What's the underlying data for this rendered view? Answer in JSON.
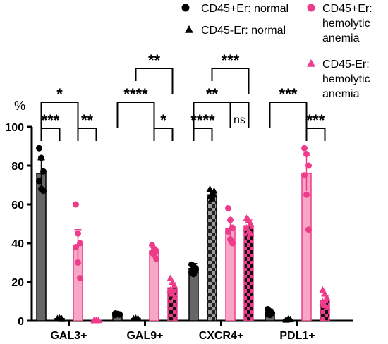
{
  "chart_data": {
    "type": "bar",
    "ylabel": "%",
    "ylim": [
      0,
      100
    ],
    "yticks": [
      "0",
      "20",
      "40",
      "60",
      "80",
      "100"
    ],
    "categories": [
      "GAL3+",
      "GAL9+",
      "CXCR4+",
      "PDL1+"
    ],
    "colors": {
      "normal": "#666666",
      "normal_dark": "#000000",
      "anemia": "#ee3c8a",
      "anemia_light": "#f7a6c6"
    },
    "series": [
      {
        "name": "CD45+Er: normal",
        "marker": "circle",
        "values": [
          76,
          3.5,
          27,
          4.5
        ],
        "errors": [
          7,
          0.6,
          2.5,
          1.5
        ],
        "points": [
          [
            89,
            84,
            77,
            72,
            68,
            67
          ],
          [
            3.8,
            3.5,
            3.3,
            3.0,
            3.6,
            3.2
          ],
          [
            29,
            28,
            27,
            25,
            24,
            26
          ],
          [
            6,
            5,
            4,
            3.5,
            3,
            4
          ]
        ]
      },
      {
        "name": "CD45-Er: normal",
        "marker": "triangle",
        "values": [
          1.2,
          1.2,
          65,
          0.8
        ],
        "errors": [
          0.4,
          0.3,
          2,
          0.3
        ],
        "points": [
          [
            1.0,
            1.5,
            0.8,
            1.3,
            1.0,
            1.2
          ],
          [
            1.0,
            1.4,
            0.9,
            1.2,
            1.1,
            1.3
          ],
          [
            68,
            66,
            65,
            64,
            63,
            67
          ],
          [
            0.6,
            1.0,
            0.8,
            0.5,
            0.9,
            0.7
          ]
        ]
      },
      {
        "name": "CD45+Er: hemolytic anemia",
        "marker": "circle",
        "values": [
          39,
          36,
          47.5,
          76
        ],
        "errors": [
          8,
          2,
          4,
          9
        ],
        "points": [
          [
            60,
            45,
            40,
            38,
            30,
            22
          ],
          [
            39,
            37,
            36,
            35,
            34,
            32
          ],
          [
            58,
            52,
            48,
            46,
            42,
            40
          ],
          [
            89,
            86,
            80,
            75,
            65,
            47
          ]
        ]
      },
      {
        "name": "CD45-Er: hemolytic anemia",
        "marker": "triangle",
        "values": [
          0.3,
          17,
          49,
          10.5
        ],
        "errors": [
          0.2,
          2.5,
          3,
          2.5
        ],
        "points": [
          [
            0.2,
            0.4,
            0.3,
            0.5,
            0.2,
            0.3
          ],
          [
            22,
            20,
            18,
            16,
            14,
            12
          ],
          [
            53,
            52,
            50,
            48,
            46,
            45
          ],
          [
            16,
            14,
            12,
            10,
            8,
            7
          ]
        ]
      }
    ],
    "significance": [
      {
        "cat": 0,
        "from": 0,
        "to": 2,
        "level": 1,
        "label": "*"
      },
      {
        "cat": 0,
        "from": 0,
        "to": 1,
        "level": 0,
        "label": "***"
      },
      {
        "cat": 0,
        "from": 2,
        "to": 3,
        "level": 0,
        "label": "**"
      },
      {
        "cat": 1,
        "from": 1,
        "to": 3,
        "level": 2,
        "label": "**"
      },
      {
        "cat": 1,
        "from": 0,
        "to": 2,
        "level": 1,
        "label": "****"
      },
      {
        "cat": 1,
        "from": 2,
        "to": 3,
        "level": 0,
        "label": "*"
      },
      {
        "cat": 2,
        "from": 1,
        "to": 3,
        "level": 2,
        "label": "***"
      },
      {
        "cat": 2,
        "from": 0,
        "to": 2,
        "level": 1,
        "label": "**"
      },
      {
        "cat": 2,
        "from": 0,
        "to": 1,
        "level": 0,
        "label": "****"
      },
      {
        "cat": 2,
        "from": 2,
        "to": 3,
        "level": 1,
        "label": "ns"
      },
      {
        "cat": 3,
        "from": 0,
        "to": 2,
        "level": 1,
        "label": "***"
      },
      {
        "cat": 3,
        "from": 2,
        "to": 3,
        "level": 0,
        "label": "***"
      }
    ],
    "legend": {
      "placement": "top-right",
      "items": [
        {
          "lines": [
            "CD45+Er: normal"
          ],
          "marker": "circle",
          "color": "#000000"
        },
        {
          "lines": [
            "CD45-Er: normal"
          ],
          "marker": "triangle",
          "color": "#000000"
        },
        {
          "lines": [
            "CD45+Er:",
            "hemolytic",
            "anemia"
          ],
          "marker": "circle",
          "color": "#ee3c8a"
        },
        {
          "lines": [
            "CD45-Er:",
            "hemolytic",
            "anemia"
          ],
          "marker": "triangle",
          "color": "#ee3c8a"
        }
      ]
    }
  }
}
